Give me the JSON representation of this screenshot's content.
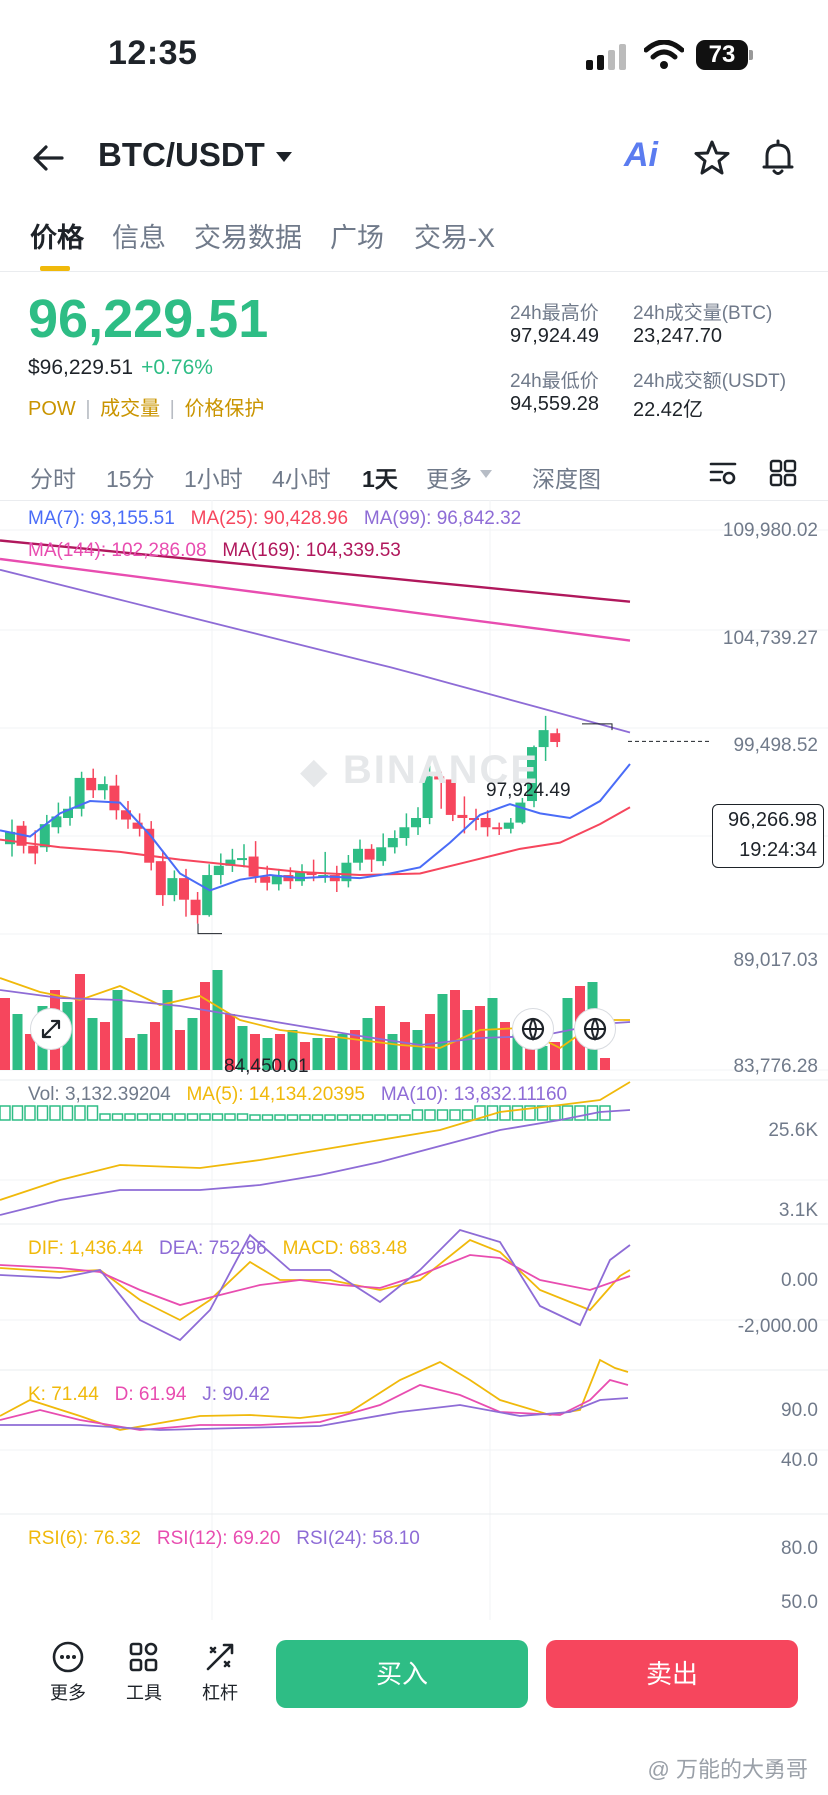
{
  "status_bar": {
    "time": "12:35",
    "battery": "73"
  },
  "header": {
    "pair": "BTC/USDT",
    "ai_label": "Ai"
  },
  "tabs": [
    {
      "label": "价格",
      "active": true
    },
    {
      "label": "信息"
    },
    {
      "label": "交易数据"
    },
    {
      "label": "广场"
    },
    {
      "label": "交易-X"
    }
  ],
  "ticker": {
    "last_price": "96,229.51",
    "usd_price": "$96,229.51",
    "change": "+0.76%",
    "tags": [
      "POW",
      "成交量",
      "价格保护"
    ],
    "high_label": "24h最高价",
    "high": "97,924.49",
    "low_label": "24h最低价",
    "low": "94,559.28",
    "vol_btc_label": "24h成交量(BTC)",
    "vol_btc": "23,247.70",
    "vol_usdt_label": "24h成交额(USDT)",
    "vol_usdt": "22.42亿"
  },
  "periods": [
    {
      "label": "分时"
    },
    {
      "label": "15分"
    },
    {
      "label": "1小时"
    },
    {
      "label": "4小时"
    },
    {
      "label": "1天",
      "active": true
    },
    {
      "label": "更多"
    },
    {
      "label": "深度图"
    }
  ],
  "main_chart": {
    "ma_legend": {
      "ma7": "MA(7): 93,155.51",
      "ma25": "MA(25): 90,428.96",
      "ma99": "MA(99): 96,842.32",
      "ma144": "MA(144): 102,286.08",
      "ma169": "MA(169): 104,339.53"
    },
    "axis_labels": [
      "109,980.02",
      "104,739.27",
      "99,498.52",
      "89,017.03",
      "83,776.28"
    ],
    "high_marker": "97,924.49",
    "low_marker": "84,450.01",
    "current_price": "96,266.98",
    "countdown": "19:24:34",
    "watermark": "BINANCE",
    "candle_colors": {
      "up": "#2ebd85",
      "down": "#f6465d"
    }
  },
  "volume": {
    "legend": {
      "vol": "Vol: 3,132.39204",
      "ma5": "MA(5): 14,134.20395",
      "ma10": "MA(10): 13,832.11160"
    },
    "axis_labels": [
      "25.6K",
      "3.1K"
    ]
  },
  "macd": {
    "legend": {
      "dif": "DIF: 1,436.44",
      "dea": "DEA: 752.96",
      "macd": "MACD: 683.48"
    },
    "axis_labels": [
      "0.00",
      "-2,000.00"
    ]
  },
  "kdj": {
    "legend": {
      "k": "K: 71.44",
      "d": "D: 61.94",
      "j": "J: 90.42"
    },
    "axis_labels": [
      "90.0",
      "40.0"
    ]
  },
  "rsi": {
    "legend": {
      "r6": "RSI(6): 76.32",
      "r12": "RSI(12): 69.20",
      "r24": "RSI(24): 58.10"
    },
    "axis_labels": [
      "80.0",
      "50.0"
    ]
  },
  "bottom_bar": {
    "more": "更多",
    "tools": "工具",
    "leverage": "杠杆",
    "buy": "买入",
    "sell": "卖出"
  },
  "footer_watermark": "@ 万能的大勇哥"
}
